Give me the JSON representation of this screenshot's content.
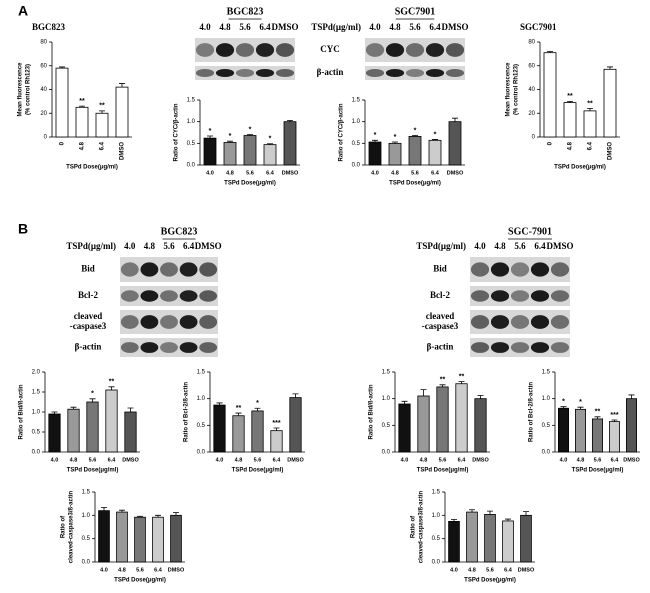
{
  "panels": [
    {
      "label": "A",
      "rows": [
        "CYC",
        "β-actin"
      ],
      "blots": [
        {
          "title": "BGC823",
          "doses": [
            "4.0",
            "4.8",
            "5.6",
            "6.4",
            "DMSO"
          ]
        },
        {
          "title": "SGC7901",
          "dose_label": "TSPd(μg/ml)",
          "doses": [
            "4.0",
            "4.8",
            "5.6",
            "6.4",
            "DMSO"
          ]
        }
      ]
    },
    {
      "label": "B",
      "blots": [
        {
          "title": "BGC823",
          "dose_label": "TSPd(μg/ml)",
          "doses": [
            "4.0",
            "4.8",
            "5.6",
            "6.4",
            "DMSO"
          ],
          "rows": [
            [
              "Bid"
            ],
            [
              "Bcl-2"
            ],
            [
              "cleaved",
              "-caspase3"
            ],
            [
              "β-actin"
            ]
          ]
        },
        {
          "title": "SGC-7901",
          "dose_label": "TSPd(μg/ml)",
          "doses": [
            "4.0",
            "4.8",
            "5.6",
            "6.4",
            "DMSO"
          ],
          "rows": [
            [
              "Bid"
            ],
            [
              "Bcl-2"
            ],
            [
              "cleaved",
              "-caspase3"
            ],
            [
              "β-actin"
            ]
          ]
        }
      ]
    }
  ],
  "chart_data": [
    {
      "type": "bar",
      "title": "BGC823",
      "ylabel": [
        "Mean fluorescence",
        "(% control Rh123)"
      ],
      "xlabel": "TSPd Dose(μg/ml)",
      "categories": [
        "0",
        "4.8",
        "6.4",
        "DMSO"
      ],
      "values": [
        58,
        25,
        20,
        42
      ],
      "errors": [
        1,
        1,
        2,
        3
      ],
      "colors": [
        "#fff",
        "#fff",
        "#fff",
        "#fff"
      ],
      "annotations": [
        null,
        "**",
        "**",
        null
      ],
      "ylim": [
        0,
        80
      ],
      "yticks": [
        0,
        20,
        40,
        60,
        80
      ]
    },
    {
      "type": "bar",
      "ylabel": [
        "Ratio of CYC/β-actin"
      ],
      "xlabel": "TSPd Dose(μg/ml)",
      "categories": [
        "4.0",
        "4.8",
        "5.6",
        "6.4",
        "DMSO"
      ],
      "values": [
        0.62,
        0.52,
        0.68,
        0.47,
        1.0
      ],
      "errors": [
        0.05,
        0.03,
        0.02,
        0.02,
        0.03
      ],
      "colors": [
        "#111",
        "#999",
        "#777",
        "#ccc",
        "#555"
      ],
      "annotations": [
        "*",
        "*",
        "*",
        "*",
        null
      ],
      "ylim": [
        0,
        1.5
      ],
      "yticks": [
        {
          "value": 0,
          "label": "0.0"
        },
        0.5,
        {
          "value": 1,
          "label": "1.0"
        },
        1.5
      ]
    },
    {
      "type": "bar",
      "ylabel": [
        "Ratio of CYC/β-actin"
      ],
      "xlabel": "TSPd Dose(μg/ml)",
      "categories": [
        "4.0",
        "4.8",
        "5.6",
        "6.4",
        "DMSO"
      ],
      "values": [
        0.53,
        0.5,
        0.66,
        0.57,
        1.0
      ],
      "errors": [
        0.04,
        0.03,
        0.02,
        0.02,
        0.08
      ],
      "colors": [
        "#111",
        "#999",
        "#777",
        "#ccc",
        "#555"
      ],
      "annotations": [
        "*",
        "*",
        "*",
        "*",
        null
      ],
      "ylim": [
        0,
        1.5
      ],
      "yticks": [
        {
          "value": 0,
          "label": "0.0"
        },
        0.5,
        {
          "value": 1,
          "label": "1.0"
        },
        1.5
      ]
    },
    {
      "type": "bar",
      "title": "SGC7901",
      "ylabel": [
        "Mean fluorescence",
        "(% control Rh123)"
      ],
      "xlabel": "TSPd Dose(μg/ml)",
      "categories": [
        "0",
        "4.8",
        "6.4",
        "DMSO"
      ],
      "values": [
        71,
        29,
        22,
        57
      ],
      "errors": [
        1,
        1,
        2,
        2
      ],
      "colors": [
        "#fff",
        "#fff",
        "#fff",
        "#fff"
      ],
      "annotations": [
        null,
        "**",
        "**",
        null
      ],
      "ylim": [
        0,
        80
      ],
      "yticks": [
        0,
        20,
        40,
        60,
        80
      ]
    },
    {
      "type": "bar",
      "ylabel": [
        "Ratio of Bid/ß-actin"
      ],
      "xlabel": "TSPd Dose(μg/ml)",
      "categories": [
        "4.0",
        "4.8",
        "5.6",
        "6.4",
        "DMSO"
      ],
      "values": [
        0.95,
        1.07,
        1.25,
        1.55,
        1.0
      ],
      "errors": [
        0.05,
        0.05,
        0.08,
        0.08,
        0.1
      ],
      "colors": [
        "#111",
        "#999",
        "#777",
        "#ccc",
        "#555"
      ],
      "annotations": [
        null,
        null,
        "*",
        "**",
        null
      ],
      "ylim": [
        0,
        2
      ],
      "yticks": [
        {
          "value": 0,
          "label": "0.0"
        },
        0.5,
        {
          "value": 1,
          "label": "1.0"
        },
        1.5,
        {
          "value": 2,
          "label": "2.0"
        }
      ]
    },
    {
      "type": "bar",
      "ylabel": [
        "Ratio of Bcl-2/ß-actin"
      ],
      "xlabel": "TSPd Dose(μg/ml)",
      "categories": [
        "4.0",
        "4.8",
        "5.6",
        "6.4",
        "DMSO"
      ],
      "values": [
        0.88,
        0.68,
        0.77,
        0.4,
        1.02
      ],
      "errors": [
        0.04,
        0.05,
        0.05,
        0.05,
        0.07
      ],
      "colors": [
        "#111",
        "#999",
        "#777",
        "#ccc",
        "#555"
      ],
      "annotations": [
        null,
        "**",
        "*",
        "***",
        null
      ],
      "ylim": [
        0,
        1.5
      ],
      "yticks": [
        {
          "value": 0,
          "label": "0.0"
        },
        0.5,
        {
          "value": 1,
          "label": "1.0"
        },
        1.5
      ]
    },
    {
      "type": "bar",
      "ylabel": [
        "Ratio of Bid/ß-actin"
      ],
      "xlabel": "TSPd Dose(μg/ml)",
      "categories": [
        "4.0",
        "4.8",
        "5.6",
        "6.4",
        "DMSO"
      ],
      "values": [
        0.9,
        1.05,
        1.22,
        1.28,
        1.0
      ],
      "errors": [
        0.05,
        0.12,
        0.04,
        0.04,
        0.06
      ],
      "colors": [
        "#111",
        "#999",
        "#777",
        "#ccc",
        "#555"
      ],
      "annotations": [
        null,
        null,
        "**",
        "**",
        null
      ],
      "ylim": [
        0,
        1.5
      ],
      "yticks": [
        {
          "value": 0,
          "label": "0.0"
        },
        0.5,
        {
          "value": 1,
          "label": "1.0"
        },
        1.5
      ]
    },
    {
      "type": "bar",
      "ylabel": [
        "Ratio of Bcl-2/ß-actin"
      ],
      "xlabel": "TSPd Dose(μg/ml)",
      "categories": [
        "4.0",
        "4.8",
        "5.6",
        "6.4",
        "DMSO"
      ],
      "values": [
        0.82,
        0.8,
        0.62,
        0.57,
        1.0
      ],
      "errors": [
        0.03,
        0.04,
        0.04,
        0.03,
        0.07
      ],
      "colors": [
        "#111",
        "#999",
        "#777",
        "#ccc",
        "#555"
      ],
      "annotations": [
        "*",
        "*",
        "**",
        "***",
        null
      ],
      "ylim": [
        0,
        1.5
      ],
      "yticks": [
        {
          "value": 0,
          "label": "0.0"
        },
        0.5,
        {
          "value": 1,
          "label": "1.0"
        },
        1.5
      ]
    },
    {
      "type": "bar",
      "ylabel": [
        "Ratio of",
        "cleaved-caspase3/ß-actin"
      ],
      "xlabel": "TSPd Dose(μg/ml)",
      "categories": [
        "4.0",
        "4.8",
        "5.6",
        "6.4",
        "DMSO"
      ],
      "values": [
        1.1,
        1.07,
        0.96,
        0.96,
        1.0
      ],
      "errors": [
        0.07,
        0.04,
        0.02,
        0.04,
        0.06
      ],
      "colors": [
        "#111",
        "#999",
        "#777",
        "#ccc",
        "#555"
      ],
      "annotations": [
        null,
        null,
        null,
        null,
        null
      ],
      "ylim": [
        0,
        1.5
      ],
      "yticks": [
        {
          "value": 0,
          "label": "0.0"
        },
        0.5,
        {
          "value": 1,
          "label": "1.0"
        },
        1.5
      ]
    },
    {
      "type": "bar",
      "ylabel": [
        "Ratio of",
        "cleaved-caspase3/ß-actin"
      ],
      "xlabel": "TSPd Dose(μg/ml)",
      "categories": [
        "4.0",
        "4.8",
        "5.6",
        "6.4",
        "DMSO"
      ],
      "values": [
        0.87,
        1.07,
        1.02,
        0.88,
        1.0
      ],
      "errors": [
        0.04,
        0.05,
        0.07,
        0.04,
        0.08
      ],
      "colors": [
        "#111",
        "#999",
        "#777",
        "#ccc",
        "#555"
      ],
      "annotations": [
        null,
        null,
        null,
        null,
        null
      ],
      "ylim": [
        0,
        1.5
      ],
      "yticks": [
        {
          "value": 0,
          "label": "0.0"
        },
        0.5,
        {
          "value": 1,
          "label": "1.0"
        },
        1.5
      ]
    }
  ]
}
